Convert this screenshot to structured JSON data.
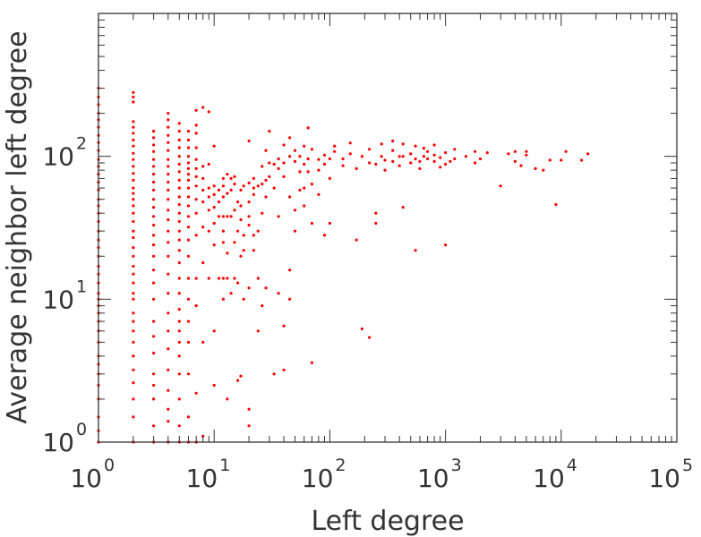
{
  "chart_data": {
    "type": "scatter",
    "xlabel": "Left degree",
    "ylabel": "Average neighbor left degree",
    "xscale": "log",
    "yscale": "log",
    "xlim": [
      1,
      100000
    ],
    "ylim": [
      1,
      1000
    ],
    "grid": false,
    "legend": "none",
    "marker_color": "#ff0000",
    "axis_color": "#333333",
    "x_ticks": [
      {
        "base": "10",
        "exp": "0",
        "value": 1
      },
      {
        "base": "10",
        "exp": "1",
        "value": 10
      },
      {
        "base": "10",
        "exp": "2",
        "value": 100
      },
      {
        "base": "10",
        "exp": "3",
        "value": 1000
      },
      {
        "base": "10",
        "exp": "4",
        "value": 10000
      },
      {
        "base": "10",
        "exp": "5",
        "value": 100000
      }
    ],
    "y_ticks": [
      {
        "base": "10",
        "exp": "0",
        "value": 1
      },
      {
        "base": "10",
        "exp": "1",
        "value": 10
      },
      {
        "base": "10",
        "exp": "2",
        "value": 100
      }
    ],
    "points": [
      [
        1,
        1
      ],
      [
        1,
        1.2
      ],
      [
        1,
        1.5
      ],
      [
        1,
        2
      ],
      [
        1,
        2.5
      ],
      [
        1,
        3
      ],
      [
        1,
        3.5
      ],
      [
        1,
        4
      ],
      [
        1,
        5
      ],
      [
        1,
        6
      ],
      [
        1,
        7
      ],
      [
        1,
        8
      ],
      [
        1,
        9
      ],
      [
        1,
        10
      ],
      [
        1,
        11
      ],
      [
        1,
        13
      ],
      [
        1,
        15
      ],
      [
        1,
        17
      ],
      [
        1,
        20
      ],
      [
        1,
        23
      ],
      [
        1,
        26
      ],
      [
        1,
        30
      ],
      [
        1,
        35
      ],
      [
        1,
        40
      ],
      [
        1,
        45
      ],
      [
        1,
        50
      ],
      [
        1,
        58
      ],
      [
        1,
        66
      ],
      [
        1,
        75
      ],
      [
        1,
        85
      ],
      [
        1,
        95
      ],
      [
        1,
        110
      ],
      [
        1,
        125
      ],
      [
        1,
        140
      ],
      [
        1,
        160
      ],
      [
        1,
        180
      ],
      [
        1,
        200
      ],
      [
        1,
        230
      ],
      [
        1,
        260
      ],
      [
        1,
        300
      ],
      [
        2,
        1
      ],
      [
        2,
        1.5
      ],
      [
        2,
        2
      ],
      [
        2,
        2.6
      ],
      [
        2,
        3.2
      ],
      [
        2,
        4
      ],
      [
        2,
        5
      ],
      [
        2,
        6
      ],
      [
        2,
        7
      ],
      [
        2,
        8
      ],
      [
        2,
        10
      ],
      [
        2,
        11
      ],
      [
        2,
        13
      ],
      [
        2,
        15
      ],
      [
        2,
        17
      ],
      [
        2,
        20
      ],
      [
        2,
        23
      ],
      [
        2,
        27
      ],
      [
        2,
        30
      ],
      [
        2,
        35
      ],
      [
        2,
        40
      ],
      [
        2,
        45
      ],
      [
        2,
        50
      ],
      [
        2,
        55
      ],
      [
        2,
        60
      ],
      [
        2,
        68
      ],
      [
        2,
        76
      ],
      [
        2,
        85
      ],
      [
        2,
        95
      ],
      [
        2,
        105
      ],
      [
        2,
        118
      ],
      [
        2,
        130
      ],
      [
        2,
        145
      ],
      [
        2,
        160
      ],
      [
        2,
        175
      ],
      [
        2,
        240
      ],
      [
        2,
        260
      ],
      [
        2,
        280
      ],
      [
        3,
        1
      ],
      [
        3,
        1.3
      ],
      [
        3,
        2
      ],
      [
        3,
        2.5
      ],
      [
        3,
        3
      ],
      [
        3,
        4.2
      ],
      [
        3,
        5.5
      ],
      [
        3,
        7
      ],
      [
        3,
        10
      ],
      [
        3,
        13
      ],
      [
        3,
        16
      ],
      [
        3,
        20
      ],
      [
        3,
        24
      ],
      [
        3,
        28
      ],
      [
        3,
        33
      ],
      [
        3,
        38
      ],
      [
        3,
        44
      ],
      [
        3,
        50
      ],
      [
        3,
        58
      ],
      [
        3,
        66
      ],
      [
        3,
        75
      ],
      [
        3,
        85
      ],
      [
        3,
        95
      ],
      [
        3,
        108
      ],
      [
        3,
        120
      ],
      [
        3,
        135
      ],
      [
        3,
        150
      ],
      [
        4,
        1
      ],
      [
        4,
        1.4
      ],
      [
        4,
        1.7
      ],
      [
        4,
        2.3
      ],
      [
        4,
        3.2
      ],
      [
        4,
        4.5
      ],
      [
        4,
        6
      ],
      [
        4,
        8
      ],
      [
        4,
        11
      ],
      [
        4,
        15
      ],
      [
        4,
        20
      ],
      [
        4,
        25
      ],
      [
        4,
        30
      ],
      [
        4,
        36
      ],
      [
        4,
        42
      ],
      [
        4,
        50
      ],
      [
        4,
        58
      ],
      [
        4,
        66
      ],
      [
        4,
        75
      ],
      [
        4,
        85
      ],
      [
        4,
        95
      ],
      [
        4,
        110
      ],
      [
        4,
        125
      ],
      [
        4,
        140
      ],
      [
        4,
        160
      ],
      [
        4,
        180
      ],
      [
        4,
        200
      ],
      [
        5,
        1
      ],
      [
        5,
        1.3
      ],
      [
        5,
        2
      ],
      [
        5,
        3
      ],
      [
        5,
        4
      ],
      [
        5,
        5
      ],
      [
        5,
        6
      ],
      [
        5,
        7
      ],
      [
        5,
        8.5
      ],
      [
        5,
        11
      ],
      [
        5,
        14
      ],
      [
        5,
        18
      ],
      [
        5,
        22
      ],
      [
        5,
        26
      ],
      [
        5,
        30
      ],
      [
        5,
        35
      ],
      [
        5,
        40
      ],
      [
        5,
        46
      ],
      [
        5,
        52
      ],
      [
        5,
        60
      ],
      [
        5,
        68
      ],
      [
        5,
        78
      ],
      [
        5,
        88
      ],
      [
        5,
        100
      ],
      [
        5,
        115
      ],
      [
        5,
        130
      ],
      [
        5,
        150
      ],
      [
        5,
        170
      ],
      [
        6,
        1
      ],
      [
        6,
        1.5
      ],
      [
        6,
        3
      ],
      [
        6,
        5
      ],
      [
        6,
        7
      ],
      [
        6,
        10
      ],
      [
        6,
        14
      ],
      [
        6,
        20
      ],
      [
        6,
        26
      ],
      [
        6,
        32
      ],
      [
        6,
        38
      ],
      [
        6,
        45
      ],
      [
        6,
        52
      ],
      [
        6,
        60
      ],
      [
        6,
        68
      ],
      [
        6,
        75
      ],
      [
        6,
        82
      ],
      [
        6,
        90
      ],
      [
        6,
        100
      ],
      [
        6,
        115
      ],
      [
        6,
        130
      ],
      [
        6,
        150
      ],
      [
        7,
        1
      ],
      [
        7,
        2.2
      ],
      [
        7,
        9
      ],
      [
        7,
        14
      ],
      [
        7,
        28
      ],
      [
        7,
        40
      ],
      [
        7,
        50
      ],
      [
        7,
        62
      ],
      [
        7,
        72
      ],
      [
        7,
        82
      ],
      [
        7,
        95
      ],
      [
        7,
        115
      ],
      [
        7,
        145
      ],
      [
        7,
        165
      ],
      [
        7,
        210
      ],
      [
        8,
        1.1
      ],
      [
        8,
        5
      ],
      [
        8,
        18
      ],
      [
        8,
        32
      ],
      [
        8,
        48
      ],
      [
        8,
        58
      ],
      [
        8,
        70
      ],
      [
        8,
        85
      ],
      [
        8,
        220
      ],
      [
        9,
        14
      ],
      [
        9,
        30
      ],
      [
        9,
        42
      ],
      [
        9,
        52
      ],
      [
        9,
        60
      ],
      [
        9,
        88
      ],
      [
        9,
        205
      ],
      [
        10,
        2.5
      ],
      [
        10,
        6
      ],
      [
        10,
        24
      ],
      [
        10,
        34
      ],
      [
        10,
        44
      ],
      [
        10,
        54
      ],
      [
        10,
        62
      ],
      [
        10,
        118
      ],
      [
        11,
        14
      ],
      [
        11,
        38
      ],
      [
        11,
        48
      ],
      [
        11,
        58
      ],
      [
        12,
        10
      ],
      [
        12,
        14
      ],
      [
        12,
        25
      ],
      [
        12,
        30
      ],
      [
        12,
        38
      ],
      [
        12,
        52
      ],
      [
        12,
        62
      ],
      [
        12,
        70
      ],
      [
        13,
        2
      ],
      [
        13,
        14
      ],
      [
        13,
        21
      ],
      [
        13,
        38
      ],
      [
        13,
        55
      ],
      [
        13,
        75
      ],
      [
        14,
        11
      ],
      [
        14,
        38
      ],
      [
        14,
        58
      ],
      [
        14,
        70
      ],
      [
        15,
        14
      ],
      [
        15,
        25
      ],
      [
        15,
        42
      ],
      [
        15,
        64
      ],
      [
        15,
        72
      ],
      [
        16,
        2.7
      ],
      [
        16,
        13
      ],
      [
        16,
        30
      ],
      [
        16,
        48
      ],
      [
        17,
        2.9
      ],
      [
        17,
        20
      ],
      [
        17,
        36
      ],
      [
        17,
        45
      ],
      [
        17,
        58
      ],
      [
        18,
        10
      ],
      [
        18,
        22
      ],
      [
        18,
        28
      ],
      [
        18,
        62
      ],
      [
        20,
        1.3
      ],
      [
        20,
        1.7
      ],
      [
        20,
        12
      ],
      [
        20,
        33
      ],
      [
        20,
        38
      ],
      [
        20,
        48
      ],
      [
        20,
        65
      ],
      [
        20,
        128
      ],
      [
        22,
        22
      ],
      [
        22,
        28
      ],
      [
        22,
        54
      ],
      [
        22,
        60
      ],
      [
        22,
        70
      ],
      [
        24,
        6
      ],
      [
        24,
        14
      ],
      [
        24,
        30
      ],
      [
        24,
        62
      ],
      [
        26,
        9
      ],
      [
        26,
        40
      ],
      [
        26,
        64
      ],
      [
        26,
        85
      ],
      [
        28,
        12
      ],
      [
        28,
        52
      ],
      [
        28,
        68
      ],
      [
        28,
        110
      ],
      [
        30,
        72
      ],
      [
        30,
        90
      ],
      [
        30,
        150
      ],
      [
        33,
        3
      ],
      [
        33,
        60
      ],
      [
        33,
        88
      ],
      [
        36,
        11
      ],
      [
        36,
        38
      ],
      [
        36,
        82
      ],
      [
        36,
        96
      ],
      [
        40,
        3.2
      ],
      [
        40,
        6.5
      ],
      [
        40,
        72
      ],
      [
        40,
        90
      ],
      [
        40,
        120
      ],
      [
        45,
        10
      ],
      [
        45,
        16
      ],
      [
        45,
        52
      ],
      [
        45,
        100
      ],
      [
        45,
        135
      ],
      [
        50,
        30
      ],
      [
        50,
        42
      ],
      [
        50,
        92
      ],
      [
        50,
        110
      ],
      [
        55,
        58
      ],
      [
        55,
        78
      ],
      [
        55,
        100
      ],
      [
        60,
        45
      ],
      [
        60,
        60
      ],
      [
        60,
        88
      ],
      [
        60,
        118
      ],
      [
        65,
        78
      ],
      [
        65,
        96
      ],
      [
        65,
        158
      ],
      [
        70,
        3.6
      ],
      [
        70,
        34
      ],
      [
        70,
        64
      ],
      [
        70,
        112
      ],
      [
        80,
        54
      ],
      [
        80,
        80
      ],
      [
        80,
        95
      ],
      [
        90,
        28
      ],
      [
        90,
        88
      ],
      [
        90,
        102
      ],
      [
        100,
        34
      ],
      [
        100,
        70
      ],
      [
        100,
        96
      ],
      [
        110,
        108
      ],
      [
        110,
        118
      ],
      [
        130,
        86
      ],
      [
        130,
        96
      ],
      [
        150,
        104
      ],
      [
        150,
        124
      ],
      [
        170,
        26
      ],
      [
        170,
        82
      ],
      [
        190,
        6.2
      ],
      [
        190,
        100
      ],
      [
        220,
        5.4
      ],
      [
        220,
        90
      ],
      [
        220,
        112
      ],
      [
        250,
        34
      ],
      [
        250,
        40
      ],
      [
        250,
        88
      ],
      [
        280,
        100
      ],
      [
        280,
        122
      ],
      [
        300,
        80
      ],
      [
        300,
        94
      ],
      [
        350,
        92
      ],
      [
        350,
        110
      ],
      [
        350,
        128
      ],
      [
        400,
        86
      ],
      [
        400,
        100
      ],
      [
        430,
        44
      ],
      [
        430,
        100
      ],
      [
        430,
        122
      ],
      [
        500,
        90
      ],
      [
        500,
        104
      ],
      [
        550,
        22
      ],
      [
        550,
        96
      ],
      [
        550,
        118
      ],
      [
        600,
        82
      ],
      [
        600,
        92
      ],
      [
        650,
        100
      ],
      [
        650,
        114
      ],
      [
        700,
        96
      ],
      [
        700,
        108
      ],
      [
        800,
        92
      ],
      [
        800,
        102
      ],
      [
        800,
        120
      ],
      [
        900,
        84
      ],
      [
        900,
        98
      ],
      [
        1000,
        24
      ],
      [
        1000,
        88
      ],
      [
        1000,
        106
      ],
      [
        1100,
        92
      ],
      [
        1200,
        96
      ],
      [
        1200,
        112
      ],
      [
        1500,
        100
      ],
      [
        1800,
        90
      ],
      [
        1800,
        108
      ],
      [
        2000,
        96
      ],
      [
        2300,
        106
      ],
      [
        3000,
        62
      ],
      [
        3500,
        104
      ],
      [
        4000,
        92
      ],
      [
        4000,
        108
      ],
      [
        4500,
        86
      ],
      [
        5000,
        102
      ],
      [
        5000,
        108
      ],
      [
        6000,
        82
      ],
      [
        7000,
        80
      ],
      [
        8000,
        94
      ],
      [
        9000,
        46
      ],
      [
        10000,
        94
      ],
      [
        11000,
        108
      ],
      [
        15000,
        94
      ],
      [
        17000,
        104
      ]
    ]
  }
}
